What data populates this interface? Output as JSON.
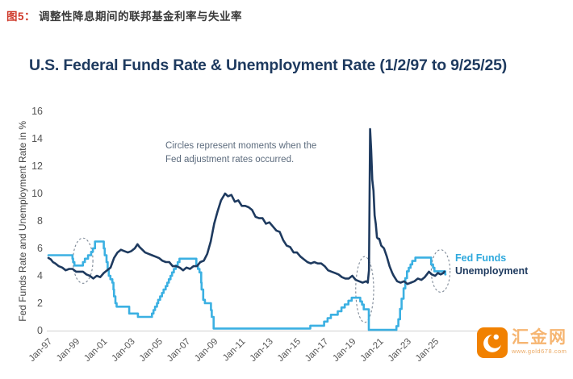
{
  "caption": {
    "number": "图5：",
    "text": "调整性降息期间的联邦基金利率与失业率"
  },
  "header": {
    "title": "U.S. Federal Funds Rate & Unemployment Rate (1/2/97 to 9/25/25)"
  },
  "annotation": {
    "line1": "Circles represent moments when the",
    "line2": "Fed adjustment rates occurred."
  },
  "legend": {
    "fed_funds": "Fed Funds",
    "unemployment": "Unemployment"
  },
  "watermark": {
    "name": "汇金网",
    "url": "www.gold678.com"
  },
  "colors": {
    "fed_funds": "#3bb0e2",
    "unemployment": "#1e3a5f",
    "title_navy": "#1e3a5f",
    "caption_red": "#cf3a2b",
    "annotation_gray": "#5d6c7e",
    "tick_gray": "#555555",
    "axis_line": "#d9d9d9",
    "circle_stroke": "#7d8896",
    "watermark_orange": "#f18101"
  },
  "chart_data": {
    "type": "line",
    "title": "U.S. Federal Funds Rate & Unemployment Rate (1/2/97 to 9/25/25)",
    "xlabel": "",
    "ylabel": "Fed Funds Rate and Unemployment Rate in %",
    "ylim": [
      0,
      16
    ],
    "ytick_step": 2,
    "x_range": [
      1997.0,
      2025.75
    ],
    "xtick_years": [
      1997,
      1999,
      2001,
      2003,
      2005,
      2007,
      2009,
      2011,
      2013,
      2015,
      2017,
      2019,
      2021,
      2023,
      2025
    ],
    "xtick_labels": [
      "Jan-97",
      "Jan-99",
      "Jan-01",
      "Jan-03",
      "Jan-05",
      "Jan-07",
      "Jan-09",
      "Jan-11",
      "Jan-13",
      "Jan-15",
      "Jan-17",
      "Jan-19",
      "Jan-21",
      "Jan-23",
      "Jan-25"
    ],
    "grid": false,
    "legend_position": "right of line ends",
    "series": [
      {
        "name": "Fed Funds",
        "style": "step",
        "color_key": "fed_funds",
        "points": [
          [
            1997.0,
            5.5
          ],
          [
            1998.74,
            5.25
          ],
          [
            1998.79,
            5.0
          ],
          [
            1998.88,
            4.75
          ],
          [
            1999.5,
            5.0
          ],
          [
            1999.64,
            5.25
          ],
          [
            1999.87,
            5.5
          ],
          [
            2000.09,
            5.75
          ],
          [
            2000.22,
            6.0
          ],
          [
            2000.37,
            6.5
          ],
          [
            2001.01,
            6.0
          ],
          [
            2001.08,
            5.5
          ],
          [
            2001.21,
            5.0
          ],
          [
            2001.29,
            4.5
          ],
          [
            2001.37,
            4.0
          ],
          [
            2001.49,
            3.75
          ],
          [
            2001.63,
            3.5
          ],
          [
            2001.71,
            3.0
          ],
          [
            2001.75,
            2.5
          ],
          [
            2001.85,
            2.0
          ],
          [
            2001.94,
            1.75
          ],
          [
            2002.85,
            1.25
          ],
          [
            2003.48,
            1.0
          ],
          [
            2004.5,
            1.25
          ],
          [
            2004.61,
            1.5
          ],
          [
            2004.72,
            1.75
          ],
          [
            2004.86,
            2.0
          ],
          [
            2004.95,
            2.25
          ],
          [
            2005.09,
            2.5
          ],
          [
            2005.22,
            2.75
          ],
          [
            2005.34,
            3.0
          ],
          [
            2005.49,
            3.25
          ],
          [
            2005.61,
            3.5
          ],
          [
            2005.72,
            3.75
          ],
          [
            2005.84,
            4.0
          ],
          [
            2005.95,
            4.25
          ],
          [
            2006.08,
            4.5
          ],
          [
            2006.22,
            4.75
          ],
          [
            2006.36,
            5.0
          ],
          [
            2006.49,
            5.25
          ],
          [
            2007.71,
            4.75
          ],
          [
            2007.83,
            4.5
          ],
          [
            2007.94,
            4.25
          ],
          [
            2008.06,
            3.5
          ],
          [
            2008.09,
            3.0
          ],
          [
            2008.21,
            2.25
          ],
          [
            2008.33,
            2.0
          ],
          [
            2008.77,
            1.5
          ],
          [
            2008.83,
            1.0
          ],
          [
            2008.96,
            0.15
          ],
          [
            2015.96,
            0.36
          ],
          [
            2016.96,
            0.66
          ],
          [
            2017.21,
            0.91
          ],
          [
            2017.45,
            1.16
          ],
          [
            2017.95,
            1.41
          ],
          [
            2018.22,
            1.69
          ],
          [
            2018.46,
            1.91
          ],
          [
            2018.72,
            2.18
          ],
          [
            2018.96,
            2.4
          ],
          [
            2019.58,
            2.13
          ],
          [
            2019.71,
            1.9
          ],
          [
            2019.83,
            1.55
          ],
          [
            2020.2,
            0.05
          ],
          [
            2022.2,
            0.33
          ],
          [
            2022.34,
            0.83
          ],
          [
            2022.46,
            1.58
          ],
          [
            2022.57,
            2.33
          ],
          [
            2022.72,
            3.08
          ],
          [
            2022.84,
            3.83
          ],
          [
            2022.96,
            4.33
          ],
          [
            2023.09,
            4.58
          ],
          [
            2023.22,
            4.83
          ],
          [
            2023.34,
            5.08
          ],
          [
            2023.57,
            5.33
          ],
          [
            2024.71,
            4.83
          ],
          [
            2024.85,
            4.58
          ],
          [
            2024.95,
            4.33
          ],
          [
            2025.73,
            4.1
          ],
          [
            2025.75,
            4.1
          ]
        ]
      },
      {
        "name": "Unemployment",
        "style": "line",
        "color_key": "unemployment",
        "points": [
          [
            1997.0,
            5.3
          ],
          [
            1997.17,
            5.2
          ],
          [
            1997.33,
            5.0
          ],
          [
            1997.5,
            4.9
          ],
          [
            1997.75,
            4.7
          ],
          [
            1998.0,
            4.6
          ],
          [
            1998.25,
            4.4
          ],
          [
            1998.5,
            4.5
          ],
          [
            1998.75,
            4.5
          ],
          [
            1999.0,
            4.3
          ],
          [
            1999.25,
            4.3
          ],
          [
            1999.5,
            4.3
          ],
          [
            1999.75,
            4.1
          ],
          [
            2000.0,
            4.0
          ],
          [
            2000.25,
            3.8
          ],
          [
            2000.5,
            4.0
          ],
          [
            2000.75,
            3.9
          ],
          [
            2001.0,
            4.2
          ],
          [
            2001.25,
            4.4
          ],
          [
            2001.5,
            4.6
          ],
          [
            2001.75,
            5.3
          ],
          [
            2002.0,
            5.7
          ],
          [
            2002.25,
            5.9
          ],
          [
            2002.5,
            5.8
          ],
          [
            2002.75,
            5.7
          ],
          [
            2003.0,
            5.8
          ],
          [
            2003.25,
            6.0
          ],
          [
            2003.45,
            6.3
          ],
          [
            2003.6,
            6.1
          ],
          [
            2003.8,
            5.9
          ],
          [
            2004.0,
            5.7
          ],
          [
            2004.25,
            5.6
          ],
          [
            2004.5,
            5.5
          ],
          [
            2004.75,
            5.4
          ],
          [
            2005.0,
            5.3
          ],
          [
            2005.25,
            5.1
          ],
          [
            2005.5,
            5.0
          ],
          [
            2005.75,
            5.0
          ],
          [
            2006.0,
            4.7
          ],
          [
            2006.25,
            4.7
          ],
          [
            2006.5,
            4.6
          ],
          [
            2006.75,
            4.4
          ],
          [
            2007.0,
            4.6
          ],
          [
            2007.25,
            4.5
          ],
          [
            2007.5,
            4.7
          ],
          [
            2007.75,
            4.7
          ],
          [
            2008.0,
            5.0
          ],
          [
            2008.25,
            5.1
          ],
          [
            2008.5,
            5.6
          ],
          [
            2008.75,
            6.5
          ],
          [
            2009.0,
            7.8
          ],
          [
            2009.25,
            8.7
          ],
          [
            2009.5,
            9.5
          ],
          [
            2009.79,
            10.0
          ],
          [
            2010.0,
            9.8
          ],
          [
            2010.25,
            9.9
          ],
          [
            2010.5,
            9.4
          ],
          [
            2010.75,
            9.5
          ],
          [
            2011.0,
            9.1
          ],
          [
            2011.25,
            9.1
          ],
          [
            2011.5,
            9.0
          ],
          [
            2011.75,
            8.8
          ],
          [
            2012.0,
            8.3
          ],
          [
            2012.25,
            8.2
          ],
          [
            2012.5,
            8.2
          ],
          [
            2012.75,
            7.8
          ],
          [
            2013.0,
            7.9
          ],
          [
            2013.25,
            7.6
          ],
          [
            2013.5,
            7.3
          ],
          [
            2013.75,
            7.2
          ],
          [
            2014.0,
            6.6
          ],
          [
            2014.25,
            6.2
          ],
          [
            2014.5,
            6.1
          ],
          [
            2014.75,
            5.7
          ],
          [
            2015.0,
            5.7
          ],
          [
            2015.25,
            5.4
          ],
          [
            2015.5,
            5.2
          ],
          [
            2015.75,
            5.0
          ],
          [
            2016.0,
            4.9
          ],
          [
            2016.25,
            5.0
          ],
          [
            2016.5,
            4.9
          ],
          [
            2016.75,
            4.9
          ],
          [
            2017.0,
            4.7
          ],
          [
            2017.25,
            4.4
          ],
          [
            2017.5,
            4.3
          ],
          [
            2017.75,
            4.2
          ],
          [
            2018.0,
            4.1
          ],
          [
            2018.25,
            3.9
          ],
          [
            2018.5,
            3.8
          ],
          [
            2018.75,
            3.8
          ],
          [
            2019.0,
            4.0
          ],
          [
            2019.25,
            3.7
          ],
          [
            2019.5,
            3.6
          ],
          [
            2019.75,
            3.5
          ],
          [
            2020.0,
            3.6
          ],
          [
            2020.12,
            3.5
          ],
          [
            2020.21,
            4.4
          ],
          [
            2020.29,
            14.7
          ],
          [
            2020.37,
            13.2
          ],
          [
            2020.45,
            11.0
          ],
          [
            2020.54,
            10.2
          ],
          [
            2020.62,
            8.4
          ],
          [
            2020.7,
            7.8
          ],
          [
            2020.79,
            6.8
          ],
          [
            2020.87,
            6.7
          ],
          [
            2020.95,
            6.7
          ],
          [
            2021.1,
            6.2
          ],
          [
            2021.3,
            6.0
          ],
          [
            2021.5,
            5.4
          ],
          [
            2021.7,
            4.7
          ],
          [
            2021.9,
            4.2
          ],
          [
            2022.0,
            4.0
          ],
          [
            2022.25,
            3.6
          ],
          [
            2022.5,
            3.5
          ],
          [
            2022.75,
            3.6
          ],
          [
            2023.0,
            3.4
          ],
          [
            2023.25,
            3.5
          ],
          [
            2023.5,
            3.6
          ],
          [
            2023.75,
            3.8
          ],
          [
            2024.0,
            3.7
          ],
          [
            2024.25,
            3.9
          ],
          [
            2024.55,
            4.3
          ],
          [
            2024.75,
            4.1
          ],
          [
            2025.0,
            4.0
          ],
          [
            2025.2,
            4.2
          ],
          [
            2025.4,
            4.1
          ],
          [
            2025.6,
            4.2
          ],
          [
            2025.67,
            4.3
          ]
        ]
      }
    ],
    "circles": [
      {
        "x": 1999.5,
        "y": 5.1,
        "rx": 0.72,
        "ry": 1.65,
        "note": "1998-99 adjustment cuts"
      },
      {
        "x": 2019.9,
        "y": 3.0,
        "rx": 0.65,
        "ry": 2.4,
        "note": "2019 adjustment cuts"
      },
      {
        "x": 2025.4,
        "y": 4.35,
        "rx": 0.68,
        "ry": 1.55,
        "note": "2024-25 adjustment cuts"
      }
    ]
  }
}
